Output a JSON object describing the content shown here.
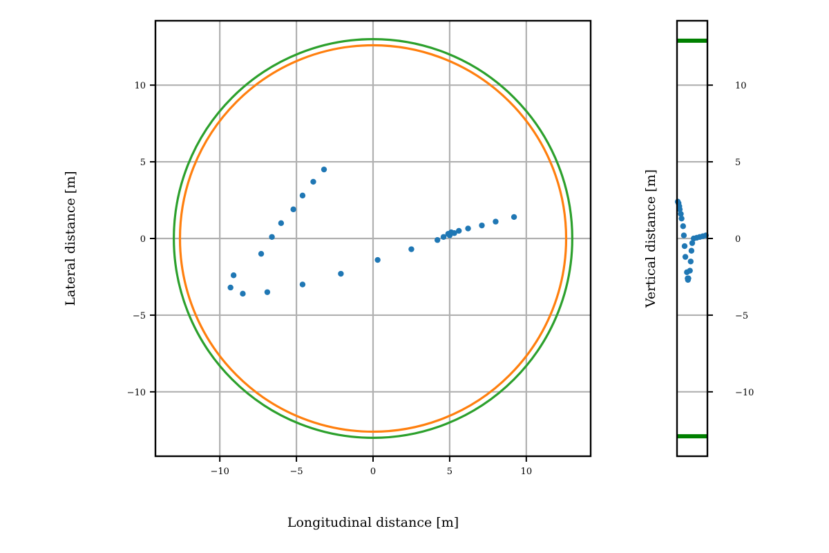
{
  "chart_data": [
    {
      "type": "scatter",
      "title": "",
      "xlabel": "Longitudinal distance [m]",
      "ylabel": "Lateral distance [m]",
      "xlim": [
        -14.2,
        14.2
      ],
      "ylim": [
        -14.2,
        14.2
      ],
      "xticks": [
        -10,
        -5,
        0,
        5,
        10
      ],
      "yticks": [
        -10,
        -5,
        0,
        5,
        10
      ],
      "xtick_labels": [
        "−10",
        "−5",
        "0",
        "5",
        "10"
      ],
      "ytick_labels": [
        "−10",
        "−5",
        "0",
        "5",
        "10"
      ],
      "grid": true,
      "circles": [
        {
          "radius": 12.6,
          "color": "#ff7f0e"
        },
        {
          "radius": 13.0,
          "color": "#2ca02c"
        }
      ],
      "series": [
        {
          "color": "#1f77b4",
          "points": [
            [
              -9.3,
              -3.2
            ],
            [
              -9.1,
              -2.4
            ],
            [
              -8.5,
              -3.6
            ],
            [
              -6.9,
              -3.5
            ],
            [
              -4.6,
              -3.0
            ],
            [
              -7.3,
              -1.0
            ],
            [
              -6.6,
              0.1
            ],
            [
              -6.0,
              1.0
            ],
            [
              -5.2,
              1.9
            ],
            [
              -4.6,
              2.8
            ],
            [
              -3.9,
              3.7
            ],
            [
              -3.2,
              4.5
            ],
            [
              -2.1,
              -2.3
            ],
            [
              0.3,
              -1.4
            ],
            [
              2.5,
              -0.7
            ],
            [
              4.2,
              -0.1
            ],
            [
              4.6,
              0.1
            ],
            [
              4.9,
              0.3
            ],
            [
              5.0,
              0.2
            ],
            [
              5.1,
              0.4
            ],
            [
              5.3,
              0.35
            ],
            [
              5.6,
              0.5
            ],
            [
              6.2,
              0.65
            ],
            [
              7.1,
              0.85
            ],
            [
              8.0,
              1.1
            ],
            [
              9.2,
              1.4
            ]
          ]
        }
      ]
    },
    {
      "type": "scatter",
      "title": "",
      "xlabel": "",
      "ylabel": "Vertical distance [m]",
      "xlim": [
        -1,
        1
      ],
      "ylim": [
        -14.2,
        14.2
      ],
      "yticks": [
        -10,
        -5,
        0,
        5,
        10
      ],
      "ytick_labels": [
        "−10",
        "−5",
        "0",
        "5",
        "10"
      ],
      "grid": true,
      "hlines": [
        {
          "y": 12.9,
          "color": "#008000"
        },
        {
          "y": -12.9,
          "color": "#008000"
        }
      ],
      "series": [
        {
          "color": "#1f77b4",
          "points": [
            [
              -0.95,
              2.4
            ],
            [
              -0.9,
              2.3
            ],
            [
              -0.85,
              2.1
            ],
            [
              -0.82,
              1.9
            ],
            [
              -0.75,
              1.6
            ],
            [
              -0.7,
              1.3
            ],
            [
              -0.6,
              0.8
            ],
            [
              -0.55,
              0.2
            ],
            [
              -0.5,
              -0.5
            ],
            [
              -0.45,
              -1.2
            ],
            [
              -0.35,
              -2.2
            ],
            [
              -0.3,
              -2.6
            ],
            [
              -0.28,
              -2.7
            ],
            [
              -0.25,
              -2.6
            ],
            [
              -0.15,
              -2.1
            ],
            [
              -0.1,
              -1.5
            ],
            [
              -0.05,
              -0.8
            ],
            [
              0.0,
              -0.3
            ],
            [
              0.1,
              0.0
            ],
            [
              0.3,
              0.05
            ],
            [
              0.5,
              0.1
            ],
            [
              0.7,
              0.15
            ],
            [
              0.9,
              0.2
            ]
          ]
        }
      ]
    }
  ]
}
